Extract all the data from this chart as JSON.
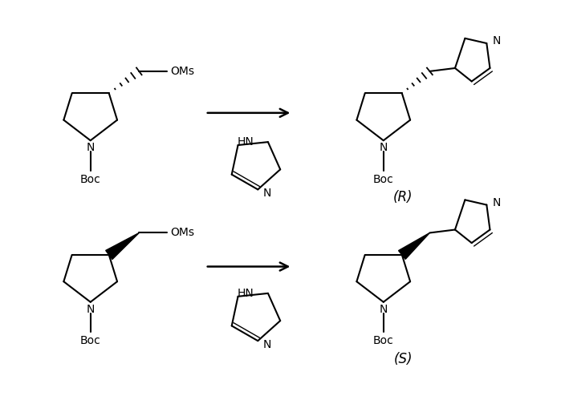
{
  "background_color": "#ffffff",
  "line_color": "#000000",
  "line_width": 1.5,
  "figsize": [
    6.99,
    4.94
  ],
  "dpi": 100,
  "label_R": "(R)",
  "label_S": "(S)",
  "label_Boc": "Boc",
  "label_OMs": "OMs",
  "label_N": "N",
  "label_HN": "HN",
  "font_size_atom": 10,
  "font_size_label": 12
}
